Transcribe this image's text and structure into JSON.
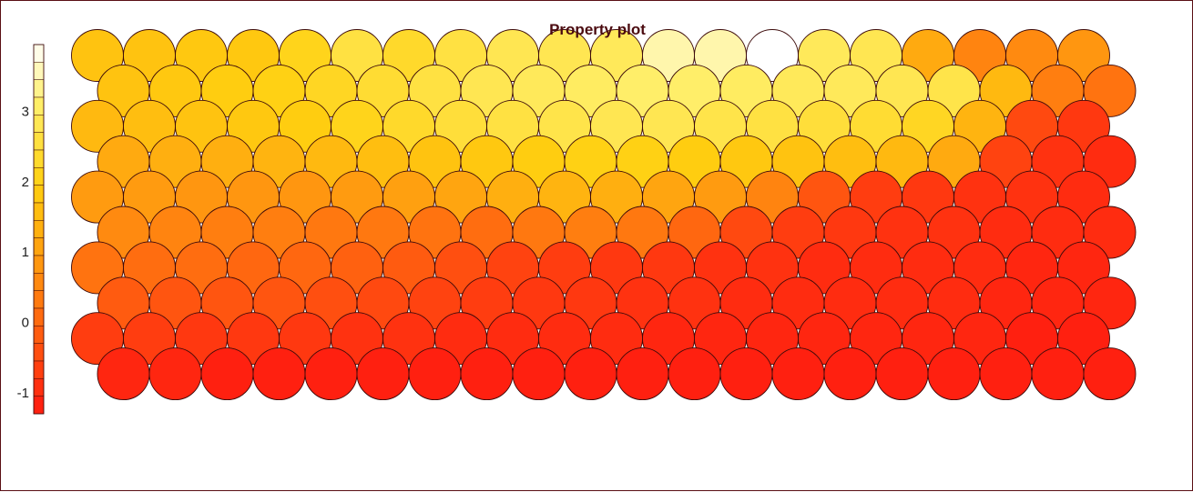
{
  "chart_data": {
    "type": "heatmap",
    "subtype": "som-hexagonal-property-plot",
    "title": "Property plot",
    "xlabel": "",
    "ylabel": "",
    "grid": {
      "rows": 10,
      "cols": 20,
      "layout": "hexagonal",
      "row_0": "bottom"
    },
    "value_range": [
      -1.3,
      3.95
    ],
    "colorbar": {
      "ticks": [
        -1,
        0,
        1,
        2,
        3
      ],
      "tick_labels": [
        "-1",
        "0",
        "1",
        "2",
        "3"
      ],
      "levels": 21,
      "placement": "left"
    },
    "colors": {
      "low": "#ff1a10",
      "mid": "#ff9a10",
      "high_yellow": "#ffd810",
      "top": "#ffffff",
      "outline": "#3c0a0a"
    },
    "values": [
      [
        -1.1,
        -1.1,
        -1.2,
        -1.2,
        -1.2,
        -1.2,
        -1.2,
        -1.2,
        -1.2,
        -1.2,
        -1.2,
        -1.2,
        -1.2,
        -1.2,
        -1.2,
        -1.2,
        -1.2,
        -1.2,
        -1.2,
        -1.2
      ],
      [
        -0.7,
        -0.7,
        -0.8,
        -0.8,
        -0.8,
        -0.9,
        -0.9,
        -1.0,
        -1.0,
        -1.0,
        -1.0,
        -1.1,
        -1.1,
        -1.1,
        -1.1,
        -1.1,
        -1.1,
        -1.1,
        -1.2,
        -1.2
      ],
      [
        -0.2,
        -0.3,
        -0.3,
        -0.3,
        -0.4,
        -0.5,
        -0.6,
        -0.7,
        -0.8,
        -0.8,
        -0.9,
        -0.9,
        -1.0,
        -1.0,
        -1.0,
        -1.0,
        -1.0,
        -1.1,
        -1.1,
        -1.1
      ],
      [
        0.2,
        0.1,
        0.1,
        0.0,
        0.0,
        -0.1,
        -0.2,
        -0.4,
        -0.6,
        -0.7,
        -0.8,
        -0.8,
        -0.9,
        -0.9,
        -1.0,
        -1.0,
        -1.0,
        -1.0,
        -1.1,
        -1.1
      ],
      [
        0.6,
        0.5,
        0.4,
        0.4,
        0.3,
        0.3,
        0.2,
        0.1,
        0.3,
        0.4,
        0.3,
        0.0,
        -0.5,
        -0.7,
        -0.8,
        -0.9,
        -0.9,
        -1.0,
        -1.0,
        -1.0
      ],
      [
        0.9,
        0.9,
        0.8,
        0.8,
        0.8,
        0.9,
        1.0,
        1.1,
        1.3,
        1.4,
        1.3,
        1.1,
        0.9,
        0.5,
        -0.3,
        -0.7,
        -0.8,
        -0.9,
        -0.9,
        -1.0
      ],
      [
        1.2,
        1.3,
        1.3,
        1.4,
        1.5,
        1.6,
        1.7,
        1.8,
        1.9,
        2.0,
        2.0,
        1.9,
        1.8,
        1.7,
        1.6,
        1.5,
        1.2,
        -0.6,
        -0.9,
        -1.0
      ],
      [
        1.5,
        1.6,
        1.7,
        1.8,
        1.9,
        2.1,
        2.3,
        2.5,
        2.6,
        2.7,
        2.8,
        2.8,
        2.7,
        2.6,
        2.5,
        2.4,
        2.2,
        1.4,
        -0.5,
        -0.8
      ],
      [
        1.7,
        1.8,
        1.9,
        2.0,
        2.2,
        2.4,
        2.6,
        2.8,
        2.9,
        3.0,
        3.1,
        3.1,
        3.0,
        2.9,
        2.9,
        2.8,
        2.7,
        1.5,
        0.4,
        0.2
      ],
      [
        1.7,
        1.7,
        1.8,
        1.8,
        2.1,
        2.6,
        2.3,
        2.6,
        2.8,
        2.8,
        2.9,
        3.5,
        3.5,
        3.95,
        2.9,
        2.8,
        1.2,
        0.5,
        0.6,
        0.8
      ]
    ]
  }
}
